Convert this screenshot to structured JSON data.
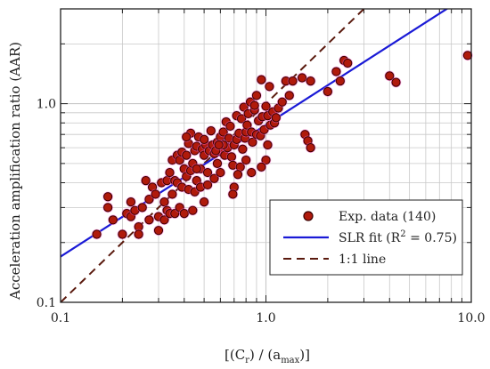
{
  "chart_data": {
    "type": "scatter",
    "title": "",
    "xscale": "log",
    "yscale": "log",
    "xlim": [
      0.1,
      10.0
    ],
    "ylim": [
      0.1,
      3.0
    ],
    "grid": true,
    "legend_position": "bottom-right",
    "ylabel": "Acceleration amplification ratio (AAR)",
    "xlabel": {
      "prefix": "[(C",
      "sub1": "r",
      "mid": ") / (a",
      "sub2": "max",
      "suffix": ")]"
    },
    "x_tick_labels": [
      "0.1",
      "1.0",
      "10.0"
    ],
    "x_ticks": [
      0.1,
      1.0,
      10.0
    ],
    "y_tick_labels": [
      "0.1",
      "1.0"
    ],
    "y_ticks": [
      0.1,
      1.0
    ],
    "colors": {
      "points_fill": "#b01a0c",
      "points_edge": "#3a0000",
      "points_halo": "#ff66cc",
      "slr_line": "#1a1ad6",
      "one_to_one_line": "#5a1a0e",
      "grid": "#c8c8c8"
    },
    "legend": {
      "points_label": "Exp. data (140)",
      "slr": {
        "prefix": "SLR fit (R",
        "sup": "2",
        "suffix": " = 0.75)"
      },
      "one_to_one_label": "1:1 line"
    },
    "lines": {
      "slr": {
        "x": [
          0.1,
          10.0
        ],
        "y": [
          0.17,
          3.6
        ]
      },
      "one_to_one": {
        "x": [
          0.1,
          10.0
        ],
        "y": [
          0.1,
          10.0
        ]
      }
    },
    "series": [
      {
        "name": "Exp. data (140)",
        "x": [
          0.15,
          0.17,
          0.17,
          0.18,
          0.2,
          0.21,
          0.22,
          0.22,
          0.23,
          0.24,
          0.24,
          0.25,
          0.26,
          0.27,
          0.27,
          0.28,
          0.29,
          0.3,
          0.3,
          0.31,
          0.32,
          0.32,
          0.33,
          0.33,
          0.34,
          0.34,
          0.35,
          0.35,
          0.36,
          0.36,
          0.37,
          0.37,
          0.38,
          0.38,
          0.39,
          0.39,
          0.4,
          0.4,
          0.41,
          0.41,
          0.42,
          0.42,
          0.43,
          0.43,
          0.44,
          0.44,
          0.45,
          0.45,
          0.46,
          0.46,
          0.47,
          0.48,
          0.48,
          0.49,
          0.5,
          0.5,
          0.51,
          0.52,
          0.52,
          0.53,
          0.54,
          0.55,
          0.56,
          0.56,
          0.58,
          0.58,
          0.6,
          0.6,
          0.61,
          0.62,
          0.63,
          0.64,
          0.65,
          0.66,
          0.67,
          0.68,
          0.69,
          0.7,
          0.7,
          0.72,
          0.72,
          0.74,
          0.75,
          0.76,
          0.77,
          0.78,
          0.79,
          0.8,
          0.81,
          0.82,
          0.84,
          0.85,
          0.86,
          0.88,
          0.9,
          0.9,
          0.92,
          0.94,
          0.95,
          0.96,
          0.98,
          1.0,
          1.0,
          1.02,
          1.04,
          1.05,
          1.08,
          1.1,
          1.12,
          1.15,
          1.2,
          1.25,
          1.3,
          1.35,
          1.5,
          1.55,
          1.6,
          1.65,
          1.65,
          2.0,
          2.2,
          2.3,
          2.4,
          2.5,
          4.0,
          4.3,
          9.6,
          0.46,
          0.57,
          0.62,
          0.85,
          0.69,
          0.73,
          0.5,
          0.95,
          0.41,
          0.59,
          1.02,
          0.8,
          0.88
        ],
        "y": [
          0.22,
          0.34,
          0.3,
          0.26,
          0.22,
          0.28,
          0.32,
          0.27,
          0.29,
          0.24,
          0.22,
          0.3,
          0.41,
          0.33,
          0.26,
          0.38,
          0.35,
          0.27,
          0.23,
          0.4,
          0.32,
          0.26,
          0.41,
          0.29,
          0.45,
          0.28,
          0.52,
          0.35,
          0.41,
          0.28,
          0.55,
          0.4,
          0.52,
          0.3,
          0.57,
          0.38,
          0.47,
          0.28,
          0.55,
          0.43,
          0.63,
          0.37,
          0.71,
          0.46,
          0.5,
          0.29,
          0.58,
          0.36,
          0.61,
          0.41,
          0.68,
          0.47,
          0.38,
          0.59,
          0.55,
          0.32,
          0.62,
          0.45,
          0.39,
          0.58,
          0.73,
          0.62,
          0.56,
          0.42,
          0.64,
          0.5,
          0.68,
          0.45,
          0.57,
          0.72,
          0.55,
          0.81,
          0.6,
          0.67,
          0.77,
          0.54,
          0.49,
          0.62,
          0.38,
          0.87,
          0.66,
          0.71,
          0.48,
          0.84,
          0.59,
          0.96,
          0.67,
          0.72,
          0.78,
          0.89,
          1.02,
          0.72,
          0.64,
          0.93,
          0.7,
          1.1,
          0.82,
          0.69,
          1.32,
          0.86,
          0.74,
          0.97,
          0.52,
          0.87,
          1.22,
          0.78,
          0.91,
          0.8,
          0.85,
          0.95,
          1.02,
          1.3,
          1.1,
          1.3,
          1.35,
          0.7,
          0.65,
          0.6,
          1.3,
          1.15,
          1.45,
          1.3,
          1.65,
          1.6,
          1.38,
          1.28,
          1.75,
          0.47,
          0.58,
          0.62,
          0.45,
          0.35,
          0.44,
          0.66,
          0.48,
          0.68,
          0.62,
          0.62,
          0.52,
          0.98
        ]
      }
    ]
  }
}
